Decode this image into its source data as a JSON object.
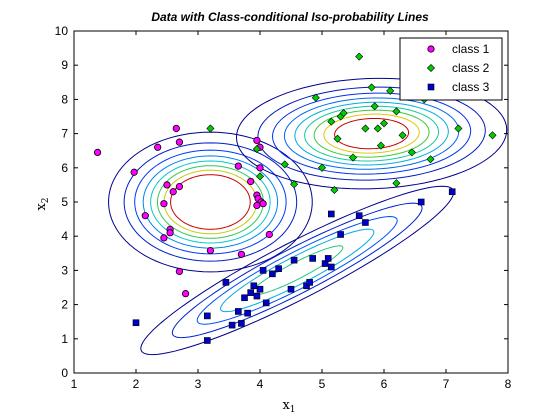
{
  "chart_data": {
    "type": "scatter",
    "title": "Data with Class-conditional Iso-probability Lines",
    "xlabel": "x",
    "xlabel_sub": "1",
    "ylabel": "x",
    "ylabel_sub": "2",
    "xlim": [
      1,
      8
    ],
    "ylim": [
      0,
      10
    ],
    "xticks": [
      1,
      2,
      3,
      4,
      5,
      6,
      7,
      8
    ],
    "yticks": [
      0,
      1,
      2,
      3,
      4,
      5,
      6,
      7,
      8,
      9,
      10
    ],
    "grid": false,
    "legend_position": "top-right",
    "series": [
      {
        "name": "class 1",
        "marker": "circle",
        "color": "#ff00ff",
        "points": [
          [
            1.38,
            6.45
          ],
          [
            1.97,
            5.87
          ],
          [
            2.15,
            4.6
          ],
          [
            2.35,
            6.6
          ],
          [
            2.45,
            4.95
          ],
          [
            2.5,
            5.5
          ],
          [
            2.55,
            4.2
          ],
          [
            2.6,
            5.3
          ],
          [
            2.65,
            7.15
          ],
          [
            2.7,
            6.75
          ],
          [
            2.7,
            5.45
          ],
          [
            2.55,
            4.1
          ],
          [
            2.45,
            3.95
          ],
          [
            2.7,
            2.97
          ],
          [
            2.8,
            2.32
          ],
          [
            3.2,
            3.58
          ],
          [
            3.65,
            6.05
          ],
          [
            3.7,
            3.47
          ],
          [
            3.85,
            5.6
          ],
          [
            3.95,
            6.8
          ],
          [
            3.95,
            5.2
          ],
          [
            3.97,
            5.1
          ],
          [
            4.0,
            6.6
          ],
          [
            4.02,
            5.0
          ],
          [
            4.05,
            4.95
          ],
          [
            3.95,
            4.9
          ],
          [
            4.0,
            6.0
          ],
          [
            4.15,
            4.05
          ]
        ]
      },
      {
        "name": "class 2",
        "marker": "diamond",
        "color": "#00cc00",
        "points": [
          [
            3.2,
            7.15
          ],
          [
            3.95,
            6.55
          ],
          [
            4.0,
            5.75
          ],
          [
            4.4,
            6.1
          ],
          [
            4.55,
            5.52
          ],
          [
            4.9,
            8.05
          ],
          [
            5.0,
            6.0
          ],
          [
            5.15,
            7.35
          ],
          [
            5.2,
            5.35
          ],
          [
            5.25,
            6.85
          ],
          [
            5.3,
            7.5
          ],
          [
            5.35,
            7.6
          ],
          [
            5.5,
            6.3
          ],
          [
            5.6,
            9.25
          ],
          [
            5.7,
            7.15
          ],
          [
            5.8,
            8.35
          ],
          [
            5.85,
            7.8
          ],
          [
            5.9,
            7.15
          ],
          [
            5.95,
            6.65
          ],
          [
            6.0,
            7.3
          ],
          [
            6.1,
            8.25
          ],
          [
            6.2,
            7.65
          ],
          [
            6.2,
            5.55
          ],
          [
            6.3,
            6.95
          ],
          [
            6.45,
            6.45
          ],
          [
            6.5,
            8.6
          ],
          [
            6.65,
            8.0
          ],
          [
            6.75,
            6.25
          ],
          [
            7.2,
            7.15
          ],
          [
            7.35,
            8.3
          ],
          [
            7.75,
            6.95
          ]
        ]
      },
      {
        "name": "class 3",
        "marker": "square",
        "color": "#0000cc",
        "points": [
          [
            2.0,
            1.47
          ],
          [
            3.15,
            1.67
          ],
          [
            3.15,
            0.95
          ],
          [
            3.45,
            2.65
          ],
          [
            3.55,
            1.4
          ],
          [
            3.65,
            1.8
          ],
          [
            3.7,
            1.45
          ],
          [
            3.75,
            2.2
          ],
          [
            3.8,
            1.75
          ],
          [
            3.85,
            2.35
          ],
          [
            3.9,
            2.55
          ],
          [
            3.95,
            2.25
          ],
          [
            4.0,
            2.45
          ],
          [
            4.05,
            3.0
          ],
          [
            4.1,
            2.05
          ],
          [
            4.2,
            2.9
          ],
          [
            4.3,
            3.05
          ],
          [
            4.5,
            2.45
          ],
          [
            4.55,
            3.3
          ],
          [
            4.75,
            2.55
          ],
          [
            4.8,
            2.65
          ],
          [
            4.85,
            3.35
          ],
          [
            5.05,
            3.2
          ],
          [
            5.1,
            3.35
          ],
          [
            5.15,
            3.1
          ],
          [
            5.15,
            4.65
          ],
          [
            5.3,
            4.05
          ],
          [
            5.6,
            4.6
          ],
          [
            5.7,
            4.4
          ],
          [
            6.6,
            5.0
          ],
          [
            7.1,
            5.3
          ]
        ]
      }
    ],
    "contours": [
      {
        "class": "class 1",
        "center": [
          3.2,
          5.0
        ],
        "cov": [
          [
            0.55,
            0.0
          ],
          [
            0.0,
            0.85
          ]
        ],
        "levels": [
          0.02,
          0.04,
          0.06,
          0.08,
          0.1,
          0.12,
          0.14,
          0.16
        ]
      },
      {
        "class": "class 2",
        "center": [
          5.8,
          7.0
        ],
        "cov": [
          [
            1.0,
            0.05
          ],
          [
            0.05,
            0.55
          ]
        ],
        "levels": [
          0.02,
          0.04,
          0.06,
          0.08,
          0.1,
          0.12,
          0.14,
          0.16,
          0.18
        ]
      },
      {
        "class": "class 3",
        "center": [
          4.6,
          3.0
        ],
        "cov": [
          [
            1.05,
            0.95
          ],
          [
            0.95,
            1.0
          ]
        ],
        "levels": [
          0.02,
          0.06,
          0.12,
          0.2,
          0.32,
          0.45,
          0.6
        ]
      }
    ]
  }
}
